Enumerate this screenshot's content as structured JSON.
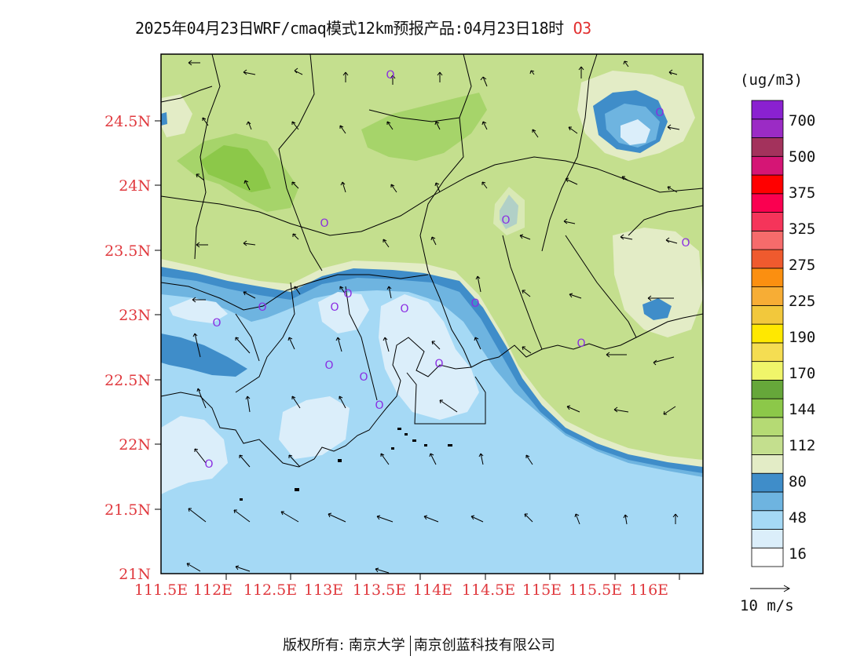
{
  "title": {
    "main": "2025年04月23日WRF/cmaq模式12km预报产品:04月23日18时",
    "species": "O3"
  },
  "map": {
    "lat_ticks": [
      "24.5N",
      "24N",
      "23.5N",
      "23N",
      "22.5N",
      "22N",
      "21.5N",
      "21N"
    ],
    "lon_ticks": [
      "111.5E",
      "112E",
      "112.5E",
      "113E",
      "113.5E",
      "114E",
      "114.5E",
      "115E",
      "115.5E",
      "116E"
    ],
    "colors": {
      "c16": "#dbeefa",
      "c48": "#a5d9f5",
      "c64": "#6eb4e0",
      "c80": "#3f8dc9",
      "c96": "#e3ecc6",
      "c112": "#c4df8e",
      "c128": "#a6d46a",
      "c144": "#8cc849",
      "border": "#000000",
      "station": "#8a2be2"
    },
    "stations": [
      "O",
      "O",
      "O",
      "O",
      "O",
      "O",
      "O",
      "O",
      "O",
      "O",
      "O",
      "O",
      "O",
      "O",
      "O",
      "O",
      "O"
    ]
  },
  "colorbar": {
    "unit": "(ug/m3)",
    "levels": [
      "700",
      "500",
      "375",
      "325",
      "275",
      "225",
      "190",
      "170",
      "144",
      "112",
      "80",
      "48",
      "16"
    ],
    "swatches": [
      "#ffffff",
      "#dbeefa",
      "#a5d9f5",
      "#6eb4e0",
      "#3f8dc9",
      "#e3ecc6",
      "#c4df8e",
      "#b5da74",
      "#8cc849",
      "#66a73a",
      "#f0f56a",
      "#f5dd52",
      "#ffe800",
      "#f2c83c",
      "#f7ad35",
      "#fb8f10",
      "#ef5a2e",
      "#f66b6b",
      "#f5345a",
      "#fa0050",
      "#ff0000",
      "#d51575",
      "#a3325c",
      "#9b2bc5",
      "#8a21d0"
    ]
  },
  "wind_scale": {
    "label": "10 m/s"
  },
  "footer": {
    "left": "版权所有: 南京大学",
    "right": "南京创蓝科技有限公司"
  }
}
